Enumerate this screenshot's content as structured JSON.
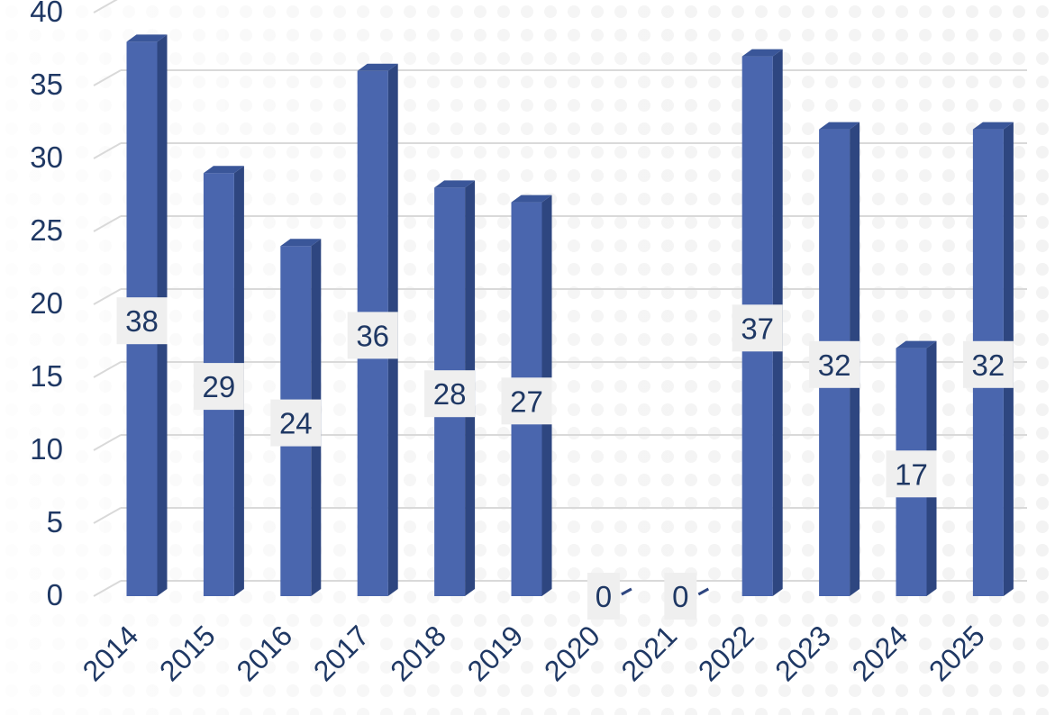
{
  "chart_data": {
    "type": "bar",
    "style": "3d-column",
    "title": "",
    "xlabel": "",
    "ylabel": "",
    "categories": [
      "2014",
      "2015",
      "2016",
      "2017",
      "2018",
      "2019",
      "2020",
      "2021",
      "2022",
      "2023",
      "2024",
      "2025"
    ],
    "series": [
      {
        "values": [
          38,
          29,
          24,
          36,
          28,
          27,
          0,
          0,
          37,
          32,
          17,
          32
        ]
      }
    ],
    "data_labels": [
      "38",
      "29",
      "24",
      "36",
      "28",
      "27",
      "0",
      "0",
      "37",
      "32",
      "17",
      "32"
    ],
    "y_ticks": [
      "0",
      "5",
      "10",
      "15",
      "20",
      "25",
      "30",
      "35",
      "40"
    ],
    "ylim": [
      0,
      40
    ],
    "grid": true,
    "legend": "none",
    "colors": {
      "bar_front": "#4a66ae",
      "bar_side": "#2e4680",
      "bar_top": "#3a5699",
      "text": "#1f3864",
      "grid": "#d9d9d9",
      "label_bg": "#efefef",
      "background_dots": "#f2f2f2"
    }
  }
}
